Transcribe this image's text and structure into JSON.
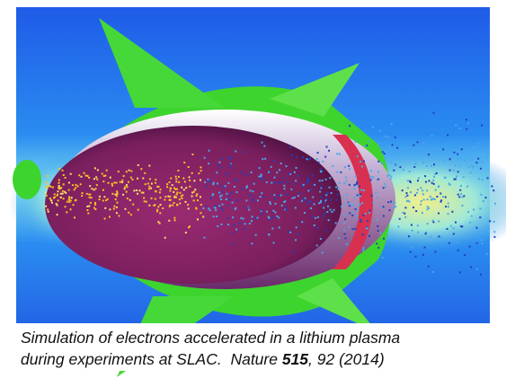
{
  "caption": {
    "line1": "Simulation of electrons accelerated in a lithium plasma",
    "line2": [
      "during experiments at SLAC.  Nature ",
      "515",
      ", 92 (2014)"
    ]
  }
}
